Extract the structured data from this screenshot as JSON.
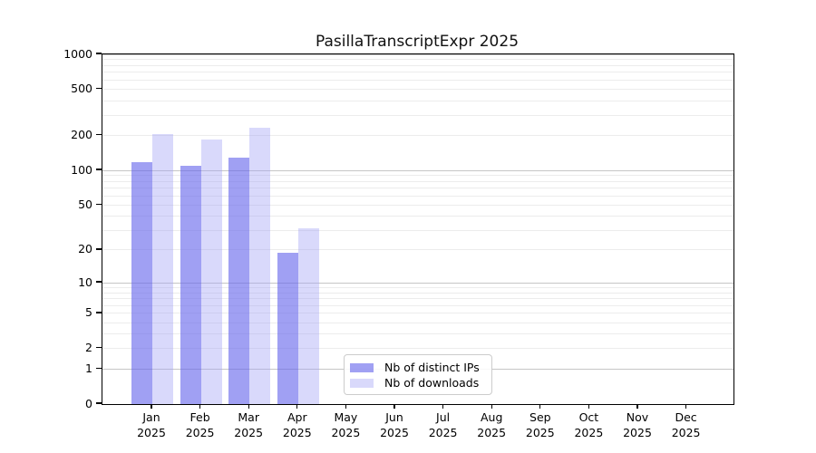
{
  "title": "PasillaTranscriptExpr 2025",
  "chart_data": {
    "type": "bar",
    "title": "PasillaTranscriptExpr 2025",
    "subtitle": "",
    "xlabel": "",
    "ylabel": "",
    "year": "2025",
    "categories": [
      "Jan 2025",
      "Feb 2025",
      "Mar 2025",
      "Apr 2025",
      "May 2025",
      "Jun 2025",
      "Jul 2025",
      "Aug 2025",
      "Sep 2025",
      "Oct 2025",
      "Nov 2025",
      "Dec 2025"
    ],
    "x_tick_months": [
      "Jan",
      "Feb",
      "Mar",
      "Apr",
      "May",
      "Jun",
      "Jul",
      "Aug",
      "Sep",
      "Oct",
      "Nov",
      "Dec"
    ],
    "series": [
      {
        "name": "Nb of distinct IPs",
        "color": "rgba(102,102,235,0.62)",
        "values": [
          119,
          110,
          129,
          19,
          null,
          null,
          null,
          null,
          null,
          null,
          null,
          null
        ]
      },
      {
        "name": "Nb of downloads",
        "color": "rgba(160,160,245,0.40)",
        "values": [
          205,
          184,
          235,
          31,
          null,
          null,
          null,
          null,
          null,
          null,
          null,
          null
        ]
      }
    ],
    "y_scale": "log10(1+x)",
    "ylim": [
      0,
      1000
    ],
    "y_ticks": [
      0,
      1,
      2,
      5,
      10,
      20,
      50,
      100,
      200,
      500,
      1000
    ],
    "grid_major_values": [
      1,
      10,
      100,
      1000
    ],
    "grid_minor_mantissas": [
      2,
      3,
      4,
      5,
      6,
      7,
      8,
      9
    ],
    "grid_minor_decades": [
      1,
      10,
      100
    ],
    "legend_position": "inside-bottom-center-left",
    "colors": {
      "grid_major": "#c6c6c6",
      "grid_minor": "#ececec",
      "axis_spine": "#000000",
      "text": "#000000",
      "background": "#ffffff"
    }
  }
}
